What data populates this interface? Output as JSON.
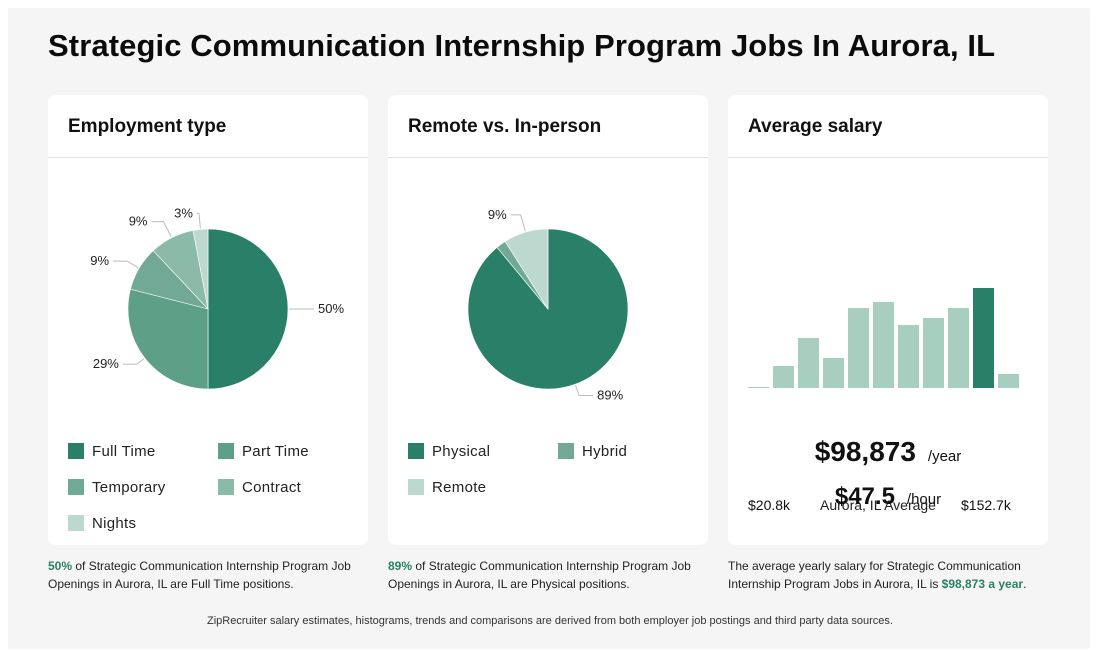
{
  "page": {
    "title": "Strategic Communication Internship Program Jobs In Aurora, IL",
    "footer": "ZipRecruiter salary estimates, histograms, trends and comparisons are derived from both employer job postings and third party data sources."
  },
  "colors": {
    "dark_green": "#2a7f68",
    "mid_green": "#5e9f88",
    "green3": "#71a996",
    "green4": "#8bbaa9",
    "light_green": "#bdd8ce",
    "bar_light": "#a8cebf",
    "bar_highlight": "#2a7f68",
    "accent_text": "#2a7f66"
  },
  "cards": {
    "employment": {
      "title": "Employment type",
      "legend": [
        "Full Time",
        "Part Time",
        "Temporary",
        "Contract",
        "Nights"
      ],
      "note": {
        "pct": "50%",
        "text": " of Strategic Communication Internship Program Job Openings in Aurora, IL are Full Time positions."
      }
    },
    "remote": {
      "title": "Remote vs. In-person",
      "legend": [
        "Physical",
        "Hybrid",
        "Remote"
      ],
      "note": {
        "pct": "89%",
        "text": " of Strategic Communication Internship Program Job Openings in Aurora, IL are Physical positions."
      }
    },
    "salary": {
      "title": "Average salary",
      "axis_min": "$20.8k",
      "axis_mid": "Aurora, IL Average",
      "axis_max": "$152.7k",
      "yearly": "$98,873",
      "yearly_unit": "/year",
      "hourly": "$47.5",
      "hourly_unit": "/hour",
      "note_prefix": "The average yearly salary for Strategic Communication Internship Program Jobs in Aurora, IL is ",
      "note_value": "$98,873 a year",
      "note_suffix": "."
    }
  },
  "chart_data": [
    {
      "type": "pie",
      "title": "Employment type",
      "categories": [
        "Full Time",
        "Part Time",
        "Temporary",
        "Contract",
        "Nights"
      ],
      "values": [
        50,
        29,
        9,
        9,
        3
      ],
      "labels": [
        "50%",
        "29%",
        "9%",
        "9%",
        "3%"
      ],
      "colors": [
        "#2a7f68",
        "#5e9f88",
        "#71a996",
        "#8bbaa9",
        "#bdd8ce"
      ]
    },
    {
      "type": "pie",
      "title": "Remote vs. In-person",
      "categories": [
        "Physical",
        "Hybrid",
        "Remote"
      ],
      "values": [
        89,
        2,
        9
      ],
      "labels": [
        "89%",
        "",
        "9%"
      ],
      "colors": [
        "#2a7f68",
        "#71a996",
        "#bdd8ce"
      ]
    },
    {
      "type": "bar",
      "title": "Average salary",
      "xlabel_min": "$20.8k",
      "xlabel_mid": "Aurora, IL Average",
      "xlabel_max": "$152.7k",
      "values": [
        1,
        22,
        50,
        30,
        80,
        86,
        63,
        70,
        80,
        100,
        14
      ],
      "highlight_index": 9
    }
  ]
}
